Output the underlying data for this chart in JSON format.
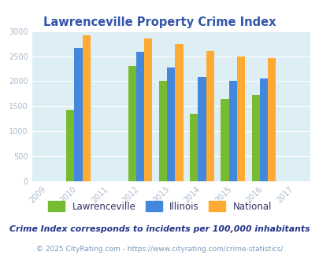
{
  "title": "Lawrenceville Property Crime Index",
  "bar_years": [
    2010,
    2012,
    2013,
    2014,
    2015,
    2016
  ],
  "all_years": [
    2009,
    2010,
    2011,
    2012,
    2013,
    2014,
    2015,
    2016,
    2017
  ],
  "lawrenceville": [
    1430,
    2300,
    2000,
    1350,
    1650,
    1730
  ],
  "illinois": [
    2670,
    2580,
    2270,
    2090,
    2000,
    2050
  ],
  "national": [
    2920,
    2850,
    2740,
    2600,
    2490,
    2460
  ],
  "color_lawrenceville": "#77bb33",
  "color_illinois": "#4488dd",
  "color_national": "#ffaa33",
  "bg_color": "#ddeef4",
  "ylim": [
    0,
    3000
  ],
  "yticks": [
    0,
    500,
    1000,
    1500,
    2000,
    2500,
    3000
  ],
  "legend_labels": [
    "Lawrenceville",
    "Illinois",
    "National"
  ],
  "footnote1": "Crime Index corresponds to incidents per 100,000 inhabitants",
  "footnote2": "© 2025 CityRating.com - https://www.cityrating.com/crime-statistics/",
  "title_color": "#3355aa",
  "footnote1_color": "#223388",
  "footnote2_color": "#7799bb",
  "tick_color": "#aabbcc",
  "bar_width": 0.26
}
